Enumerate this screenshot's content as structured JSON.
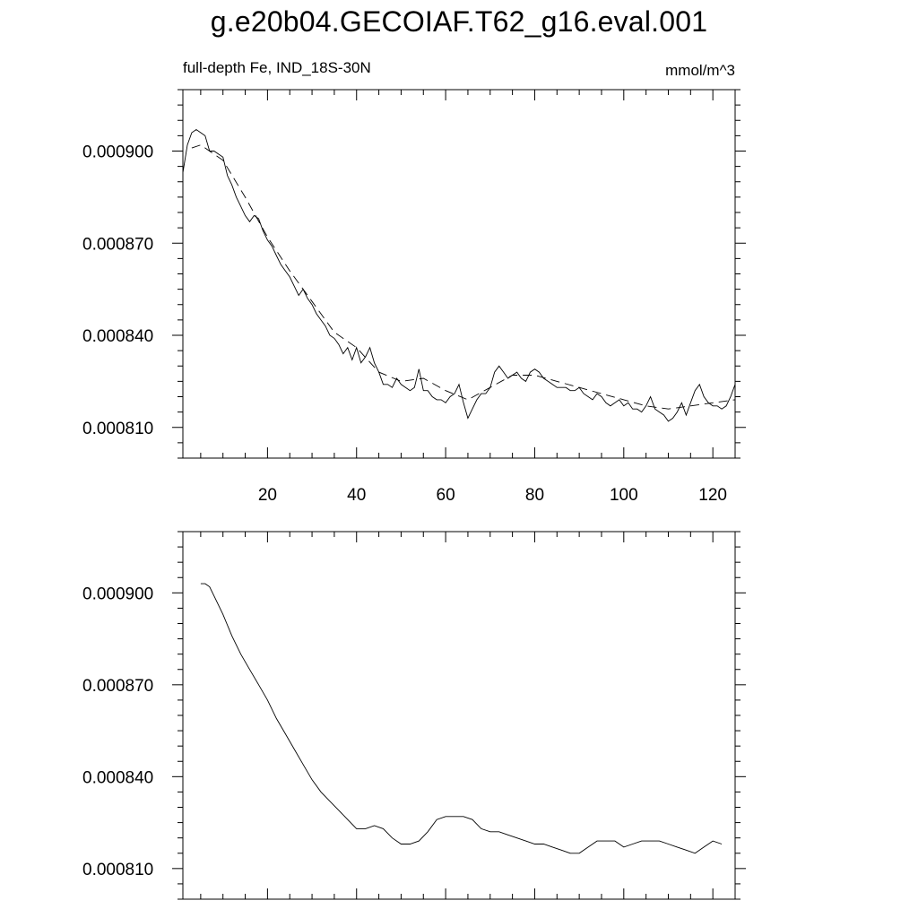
{
  "page": {
    "title": "g.e20b04.GECOIAF.T62_g16.eval.001"
  },
  "chart_data": [
    {
      "type": "line",
      "left_label": "full-depth Fe, IND_18S-30N",
      "right_label": "mmol/m^3",
      "xlim": [
        1,
        125
      ],
      "ylim": [
        0.0008,
        0.00092
      ],
      "yticks_major": [
        0.00081,
        0.00084,
        0.00087,
        0.0009
      ],
      "ytick_labels": [
        "0.000810",
        "0.000840",
        "0.000870",
        "0.000900"
      ],
      "xticks_major": [
        20,
        40,
        60,
        80,
        100,
        120
      ],
      "xtick_labels": [
        "20",
        "40",
        "60",
        "80",
        "100",
        "120"
      ],
      "series": [
        {
          "style": "solid",
          "x": [
            1,
            2,
            3,
            4,
            5,
            6,
            7,
            8,
            9,
            10,
            11,
            12,
            13,
            14,
            15,
            16,
            17,
            18,
            19,
            20,
            21,
            22,
            23,
            24,
            25,
            26,
            27,
            28,
            29,
            30,
            31,
            32,
            33,
            34,
            35,
            36,
            37,
            38,
            39,
            40,
            41,
            42,
            43,
            44,
            45,
            46,
            47,
            48,
            49,
            50,
            51,
            52,
            53,
            54,
            55,
            56,
            57,
            58,
            59,
            60,
            61,
            62,
            63,
            64,
            65,
            66,
            67,
            68,
            69,
            70,
            71,
            72,
            73,
            74,
            75,
            76,
            77,
            78,
            79,
            80,
            81,
            82,
            83,
            84,
            85,
            86,
            87,
            88,
            89,
            90,
            91,
            92,
            93,
            94,
            95,
            96,
            97,
            98,
            99,
            100,
            101,
            102,
            103,
            104,
            105,
            106,
            107,
            108,
            109,
            110,
            111,
            112,
            113,
            114,
            115,
            116,
            117,
            118,
            119,
            120,
            121,
            122,
            123,
            124,
            125
          ],
          "values": [
            0.000893,
            0.000902,
            0.000906,
            0.000907,
            0.000906,
            0.000905,
            0.0009,
            0.0009,
            0.000899,
            0.000898,
            0.000892,
            0.000889,
            0.000885,
            0.000882,
            0.000879,
            0.000877,
            0.000879,
            0.000878,
            0.000874,
            0.000871,
            0.000869,
            0.000866,
            0.000863,
            0.000861,
            0.000859,
            0.000856,
            0.000853,
            0.000855,
            0.000852,
            0.00085,
            0.000847,
            0.000845,
            0.000843,
            0.00084,
            0.000839,
            0.000837,
            0.000834,
            0.000836,
            0.000832,
            0.000836,
            0.000831,
            0.000833,
            0.000836,
            0.000831,
            0.000828,
            0.000824,
            0.000824,
            0.000823,
            0.000826,
            0.000824,
            0.000823,
            0.000822,
            0.000823,
            0.000829,
            0.000822,
            0.000822,
            0.00082,
            0.000819,
            0.000819,
            0.000818,
            0.00082,
            0.000821,
            0.000824,
            0.000818,
            0.000813,
            0.000816,
            0.000819,
            0.000821,
            0.000821,
            0.000823,
            0.000828,
            0.00083,
            0.000828,
            0.000826,
            0.000827,
            0.000828,
            0.000826,
            0.000825,
            0.000828,
            0.000829,
            0.000828,
            0.000826,
            0.000825,
            0.000824,
            0.000823,
            0.000823,
            0.000823,
            0.000822,
            0.000822,
            0.000823,
            0.000821,
            0.00082,
            0.000819,
            0.000821,
            0.00082,
            0.000818,
            0.000817,
            0.000818,
            0.000819,
            0.000817,
            0.000818,
            0.000816,
            0.000816,
            0.000815,
            0.000817,
            0.00082,
            0.000816,
            0.000815,
            0.000814,
            0.000812,
            0.000813,
            0.000815,
            0.000818,
            0.000814,
            0.000818,
            0.000822,
            0.000824,
            0.00082,
            0.000818,
            0.000817,
            0.000817,
            0.000816,
            0.000817,
            0.00082,
            0.000824
          ]
        },
        {
          "style": "dashed",
          "x": [
            3,
            5,
            10,
            15,
            20,
            25,
            30,
            35,
            40,
            45,
            50,
            55,
            60,
            65,
            70,
            75,
            80,
            85,
            90,
            95,
            100,
            105,
            110,
            115,
            120,
            125
          ],
          "values": [
            0.000901,
            0.000902,
            0.000897,
            0.000885,
            0.000872,
            0.000861,
            0.000851,
            0.000841,
            0.000836,
            0.000828,
            0.000825,
            0.000826,
            0.000822,
            0.000819,
            0.000823,
            0.000827,
            0.000827,
            0.000825,
            0.000823,
            0.000821,
            0.000819,
            0.000817,
            0.000816,
            0.000817,
            0.000818,
            0.000819
          ]
        }
      ]
    },
    {
      "type": "line",
      "xlim": [
        1,
        125
      ],
      "ylim": [
        0.0008,
        0.00092
      ],
      "yticks_major": [
        0.00081,
        0.00084,
        0.00087,
        0.0009
      ],
      "ytick_labels": [
        "0.000810",
        "0.000840",
        "0.000870",
        "0.000900"
      ],
      "xticks_major": [
        20,
        40,
        60,
        80,
        100,
        120
      ],
      "series": [
        {
          "style": "solid",
          "x": [
            5,
            6,
            7,
            8,
            10,
            12,
            14,
            16,
            18,
            20,
            22,
            24,
            26,
            28,
            30,
            32,
            34,
            36,
            38,
            40,
            42,
            44,
            46,
            48,
            50,
            52,
            54,
            56,
            58,
            60,
            62,
            64,
            66,
            68,
            70,
            72,
            74,
            76,
            78,
            80,
            82,
            84,
            86,
            88,
            90,
            92,
            94,
            96,
            98,
            100,
            102,
            104,
            106,
            108,
            110,
            112,
            114,
            116,
            118,
            120,
            122
          ],
          "values": [
            0.000903,
            0.000903,
            0.000902,
            0.000899,
            0.000893,
            0.000886,
            0.00088,
            0.000875,
            0.00087,
            0.000865,
            0.000859,
            0.000854,
            0.000849,
            0.000844,
            0.000839,
            0.000835,
            0.000832,
            0.000829,
            0.000826,
            0.000823,
            0.000823,
            0.000824,
            0.000823,
            0.00082,
            0.000818,
            0.000818,
            0.000819,
            0.000822,
            0.000826,
            0.000827,
            0.000827,
            0.000827,
            0.000826,
            0.000823,
            0.000822,
            0.000822,
            0.000821,
            0.00082,
            0.000819,
            0.000818,
            0.000818,
            0.000817,
            0.000816,
            0.000815,
            0.000815,
            0.000817,
            0.000819,
            0.000819,
            0.000819,
            0.000817,
            0.000818,
            0.000819,
            0.000819,
            0.000819,
            0.000818,
            0.000817,
            0.000816,
            0.000815,
            0.000817,
            0.000819,
            0.000818
          ]
        }
      ]
    }
  ]
}
